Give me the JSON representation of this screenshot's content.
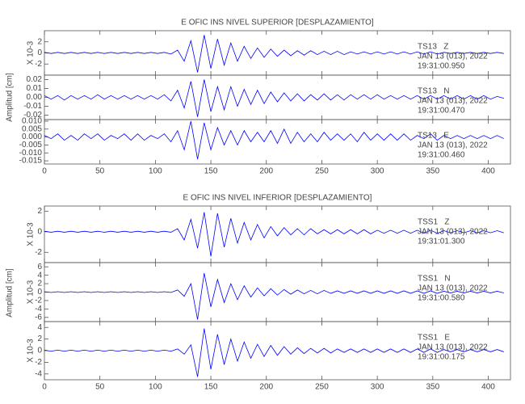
{
  "chart_data": [
    {
      "type": "line",
      "title": "E OFIC INS NIVEL SUPERIOR [DESPLAZAMIENTO]",
      "ylabel": "Amplitud [cm]",
      "xlim": [
        0,
        420
      ],
      "xticks": [
        0,
        50,
        100,
        150,
        200,
        250,
        300,
        350,
        400
      ],
      "x": [
        0,
        6,
        12,
        18,
        24,
        30,
        36,
        42,
        48,
        54,
        60,
        66,
        72,
        78,
        84,
        90,
        96,
        102,
        108,
        114,
        120,
        126,
        132,
        138,
        144,
        150,
        156,
        162,
        168,
        174,
        180,
        186,
        192,
        198,
        204,
        210,
        216,
        222,
        228,
        234,
        240,
        246,
        252,
        258,
        264,
        270,
        276,
        282,
        288,
        294,
        300,
        306,
        312,
        318,
        324,
        330,
        336,
        342,
        348,
        354,
        360,
        366,
        372,
        378,
        384,
        390,
        396,
        402,
        408,
        414
      ],
      "series": [
        {
          "name": "TS13   Z",
          "annotation": [
            "JAN 13 (013), 2022",
            "19:31:00.950"
          ],
          "scale_label": "X 10-3",
          "color": "#0000ff",
          "ylim": [
            -4,
            4
          ],
          "yticks": [
            -2,
            0,
            2
          ],
          "values": [
            0.1,
            -0.1,
            0.1,
            -0.1,
            0.1,
            -0.1,
            0.1,
            -0.1,
            0.1,
            -0.1,
            0.1,
            -0.1,
            0.1,
            -0.1,
            0.1,
            -0.1,
            0.1,
            -0.1,
            0.1,
            -0.2,
            0.5,
            -1.5,
            2.2,
            -3.5,
            3.2,
            -2.8,
            2.5,
            -2.2,
            1.8,
            -1.5,
            1.2,
            -1.0,
            0.9,
            -0.8,
            0.7,
            -0.6,
            0.5,
            -0.5,
            0.4,
            -0.4,
            0.4,
            -0.3,
            0.3,
            -0.3,
            0.3,
            -0.3,
            0.2,
            -0.2,
            0.2,
            -0.2,
            0.2,
            -0.2,
            0.2,
            -0.2,
            0.2,
            -0.2,
            0.2,
            -0.2,
            0.2,
            -0.2,
            0.1,
            -0.1,
            0.1,
            -0.1,
            0.1,
            -0.1,
            0.1,
            -0.1,
            0.1,
            -0.1
          ]
        },
        {
          "name": "TS13   N",
          "annotation": [
            "JAN 13 (013), 2022",
            "19:31:00.470"
          ],
          "color": "#0000ff",
          "ylim": [
            -0.025,
            0.025
          ],
          "yticks": [
            {
              "value": -0.02,
              "label": "-0.02"
            },
            {
              "value": -0.01,
              "label": "-0.01"
            },
            {
              "value": 0,
              "label": "0.00"
            },
            {
              "value": 0.01,
              "label": "0.01"
            },
            {
              "value": 0.02,
              "label": "0.02"
            }
          ],
          "values": [
            0.002,
            -0.002,
            0.002,
            -0.003,
            0.002,
            -0.002,
            0.002,
            -0.002,
            0.003,
            -0.002,
            0.002,
            -0.002,
            0.002,
            -0.002,
            0.002,
            -0.002,
            0.002,
            -0.002,
            0.003,
            -0.004,
            0.008,
            -0.012,
            0.018,
            -0.022,
            0.02,
            -0.016,
            0.012,
            -0.014,
            0.012,
            -0.01,
            0.009,
            -0.008,
            0.008,
            -0.007,
            0.006,
            -0.005,
            0.005,
            -0.004,
            0.004,
            -0.004,
            0.003,
            -0.003,
            0.004,
            -0.003,
            0.003,
            -0.003,
            0.003,
            -0.002,
            0.003,
            -0.002,
            0.003,
            -0.002,
            0.002,
            -0.002,
            0.002,
            -0.002,
            0.002,
            -0.002,
            0.002,
            -0.002,
            0.002,
            -0.002,
            0.002,
            -0.002,
            0.002,
            -0.002,
            0.002,
            -0.002,
            0.001,
            -0.001
          ]
        },
        {
          "name": "TS13   E",
          "annotation": [
            "JAN 13 (013), 2022",
            "19:31:00.460"
          ],
          "color": "#0000ff",
          "ylim": [
            -0.017,
            0.011
          ],
          "yticks": [
            {
              "value": -0.015,
              "label": "-0.015"
            },
            {
              "value": -0.01,
              "label": "-0.010"
            },
            {
              "value": -0.005,
              "label": "-0.005"
            },
            {
              "value": 0,
              "label": "0.000"
            },
            {
              "value": 0.005,
              "label": "0.005"
            },
            {
              "value": 0.01,
              "label": "0.010"
            }
          ],
          "values": [
            0.001,
            -0.001,
            0.002,
            -0.002,
            0.001,
            -0.002,
            0.002,
            -0.001,
            0.002,
            -0.002,
            0.001,
            -0.001,
            0.002,
            -0.002,
            0.002,
            -0.002,
            0.001,
            -0.001,
            0.002,
            -0.003,
            0.004,
            -0.008,
            0.01,
            -0.014,
            0.009,
            -0.008,
            0.006,
            -0.005,
            0.004,
            -0.005,
            0.004,
            -0.003,
            0.003,
            -0.003,
            0.004,
            -0.004,
            0.005,
            -0.004,
            0.003,
            -0.003,
            0.002,
            -0.003,
            0.003,
            -0.002,
            0.002,
            -0.002,
            0.002,
            -0.003,
            0.003,
            -0.002,
            0.002,
            -0.002,
            0.002,
            -0.002,
            0.002,
            -0.002,
            0.001,
            -0.001,
            0.002,
            -0.002,
            0.001,
            -0.001,
            0.001,
            -0.001,
            0.001,
            -0.001,
            0.001,
            -0.001,
            0.001,
            -0.001
          ]
        }
      ]
    },
    {
      "type": "line",
      "title": "E OFIC INS NIVEL INFERIOR [DESPLAZAMIENTO]",
      "ylabel": "Amplitud [cm]",
      "xlim": [
        0,
        420
      ],
      "xticks": [
        0,
        50,
        100,
        150,
        200,
        250,
        300,
        350,
        400
      ],
      "x": [
        0,
        6,
        12,
        18,
        24,
        30,
        36,
        42,
        48,
        54,
        60,
        66,
        72,
        78,
        84,
        90,
        96,
        102,
        108,
        114,
        120,
        126,
        132,
        138,
        144,
        150,
        156,
        162,
        168,
        174,
        180,
        186,
        192,
        198,
        204,
        210,
        216,
        222,
        228,
        234,
        240,
        246,
        252,
        258,
        264,
        270,
        276,
        282,
        288,
        294,
        300,
        306,
        312,
        318,
        324,
        330,
        336,
        342,
        348,
        354,
        360,
        366,
        372,
        378,
        384,
        390,
        396,
        402,
        408,
        414
      ],
      "series": [
        {
          "name": "TSS1   Z",
          "annotation": [
            "JAN 13 (013), 2022",
            "19:31:01.300"
          ],
          "scale_label": "X 10-3",
          "color": "#0000ff",
          "ylim": [
            -3,
            2.5
          ],
          "yticks": [
            -2,
            0,
            2
          ],
          "values": [
            0.05,
            -0.05,
            0.05,
            -0.05,
            0.05,
            -0.05,
            0.05,
            -0.05,
            0.05,
            -0.05,
            0.05,
            -0.05,
            0.05,
            -0.05,
            0.05,
            -0.05,
            0.05,
            -0.05,
            0.05,
            -0.05,
            0.3,
            -0.8,
            1.2,
            -1.6,
            1.9,
            -2.4,
            1.8,
            -1.5,
            1.3,
            -1.1,
            0.9,
            -0.8,
            0.7,
            -0.6,
            0.5,
            -0.4,
            0.4,
            -0.3,
            0.3,
            -0.3,
            0.3,
            -0.2,
            0.2,
            -0.2,
            0.2,
            -0.2,
            0.2,
            -0.2,
            0.2,
            -0.2,
            0.15,
            -0.15,
            0.15,
            -0.15,
            0.15,
            -0.15,
            0.15,
            -0.15,
            0.15,
            -0.15,
            0.1,
            -0.1,
            0.1,
            -0.1,
            0.1,
            -0.1,
            0.1,
            -0.1,
            0.1,
            -0.1
          ]
        },
        {
          "name": "TSS1   N",
          "annotation": [
            "JAN 13 (013), 2022",
            "19:31:00.580"
          ],
          "scale_label": "X 10-3",
          "color": "#0000ff",
          "ylim": [
            -7,
            7
          ],
          "yticks": [
            -6,
            -4,
            -2,
            0,
            2,
            4,
            6
          ],
          "values": [
            0.1,
            -0.1,
            0.1,
            -0.1,
            0.1,
            -0.1,
            0.1,
            -0.1,
            0.1,
            -0.1,
            0.1,
            -0.1,
            0.1,
            -0.1,
            0.1,
            -0.1,
            0.1,
            -0.1,
            0.1,
            -0.1,
            0.5,
            -1,
            2,
            -6.5,
            4.5,
            -3.5,
            3,
            -2.5,
            2,
            -1.8,
            1.5,
            -1.2,
            1,
            -0.9,
            0.8,
            -0.7,
            0.6,
            -0.5,
            0.5,
            -0.4,
            0.4,
            -0.4,
            0.4,
            -0.3,
            0.3,
            -0.3,
            0.3,
            -0.3,
            0.3,
            -0.3,
            0.3,
            -0.3,
            0.3,
            -0.3,
            0.3,
            -0.3,
            0.3,
            -0.3,
            0.3,
            -0.3,
            0.2,
            -0.2,
            0.2,
            -0.2,
            0.2,
            -0.2,
            0.2,
            -0.2,
            0.2,
            -0.2
          ]
        },
        {
          "name": "TSS1   E",
          "annotation": [
            "JAN 13 (013), 2022",
            "19:31:00.175"
          ],
          "scale_label": "X 10-3",
          "color": "#0000ff",
          "ylim": [
            -5,
            5
          ],
          "yticks": [
            -4,
            -2,
            0,
            2,
            4
          ],
          "values": [
            0.1,
            -0.1,
            0.1,
            -0.1,
            0.1,
            -0.1,
            0.1,
            -0.1,
            0.1,
            -0.1,
            0.1,
            -0.1,
            0.1,
            -0.1,
            0.1,
            -0.1,
            0.1,
            -0.1,
            0.1,
            -0.1,
            0.3,
            -0.6,
            1,
            -4.5,
            3.8,
            -3.2,
            2.8,
            -2.4,
            2,
            -1.8,
            1.5,
            -1.3,
            1.1,
            -1,
            0.9,
            -0.8,
            0.7,
            -0.6,
            0.5,
            -0.5,
            0.4,
            -0.4,
            0.4,
            -0.4,
            0.3,
            -0.3,
            0.3,
            -0.3,
            0.3,
            -0.3,
            0.3,
            -0.3,
            0.3,
            -0.3,
            0.3,
            -0.3,
            0.3,
            -0.3,
            0.3,
            -0.3,
            0.2,
            -0.2,
            0.2,
            -0.2,
            0.2,
            -0.2,
            0.2,
            -0.2,
            0.2,
            -0.2
          ]
        }
      ]
    }
  ]
}
